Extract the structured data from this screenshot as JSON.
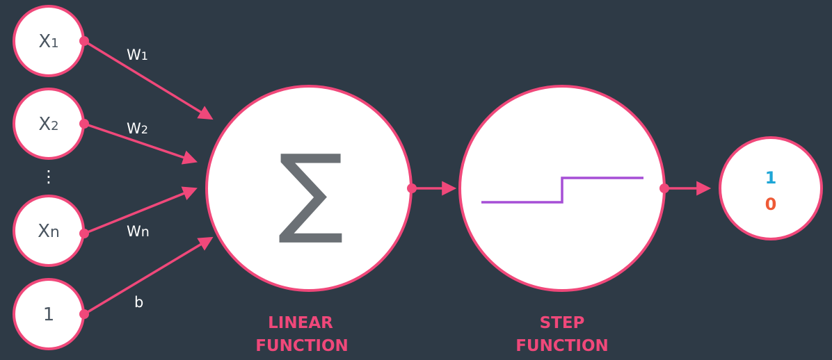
{
  "inputs": [
    {
      "base": "X",
      "sub": "1"
    },
    {
      "base": "X",
      "sub": "2"
    },
    {
      "base": "X",
      "sub": "n"
    },
    {
      "base": "1",
      "sub": ""
    }
  ],
  "ellipsis": "⋮",
  "weights": [
    {
      "base": "W",
      "sub": "1"
    },
    {
      "base": "W",
      "sub": "2"
    },
    {
      "base": "W",
      "sub": "n"
    },
    {
      "base": "b",
      "sub": ""
    }
  ],
  "linear_node": {
    "symbol": "∑",
    "caption_line1": "LINEAR",
    "caption_line2": "FUNCTION"
  },
  "step_node": {
    "caption_line1": "STEP",
    "caption_line2": "FUNCTION"
  },
  "output_node": {
    "value_one": "1",
    "value_zero": "0"
  },
  "colors": {
    "background": "#2e3a46",
    "accent": "#f0487a",
    "step_line": "#a64fd6",
    "output_one": "#1ea6d6",
    "output_zero": "#ee5a36"
  }
}
